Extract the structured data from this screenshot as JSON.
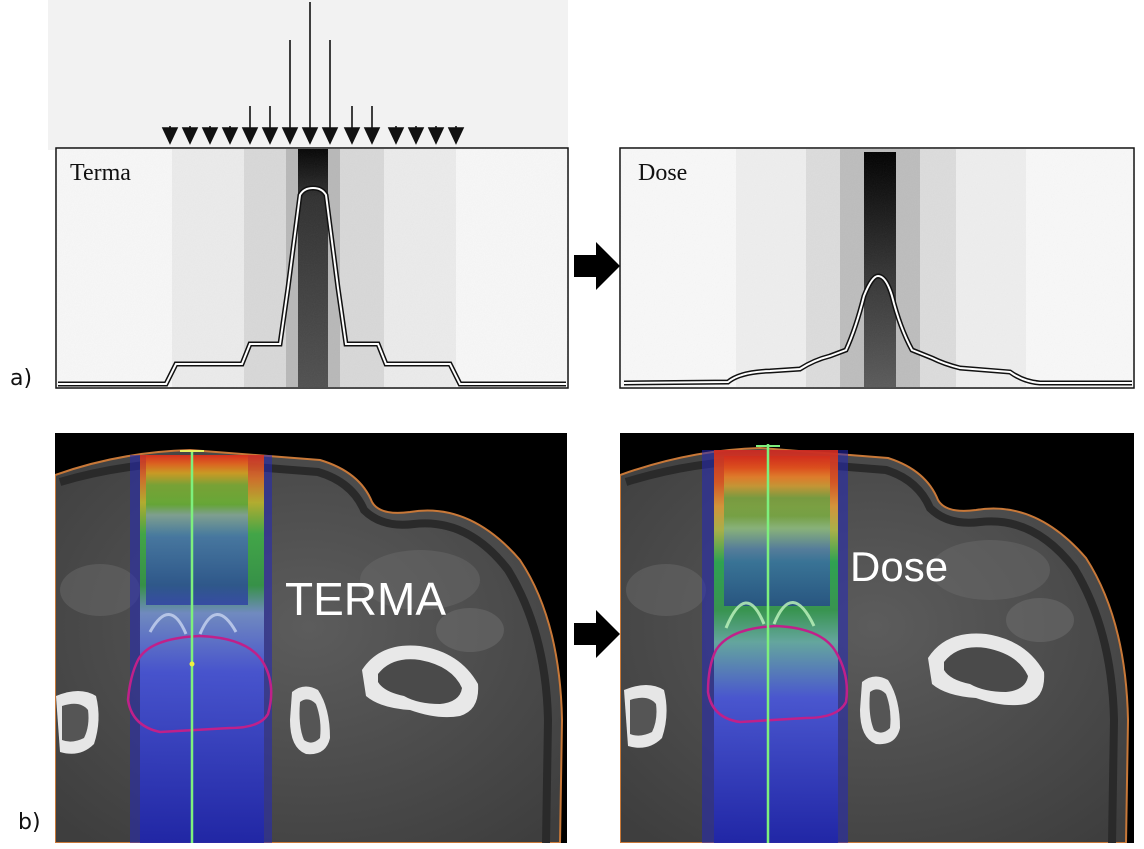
{
  "figure": {
    "panel_a": {
      "label": "a)",
      "left_title": "Terma",
      "right_title": "Dose"
    },
    "panel_b": {
      "label": "b)",
      "left_title": "TERMA",
      "right_title": "Dose"
    }
  },
  "icons": {
    "arrow": "right-arrow-icon",
    "beamlet": "down-arrow-icon"
  },
  "colors": {
    "ink": "#111111",
    "ct_background": "#000000",
    "contour": "#c0208a",
    "beam_axis": "#7df07d",
    "body_outline": "#c87838"
  }
}
